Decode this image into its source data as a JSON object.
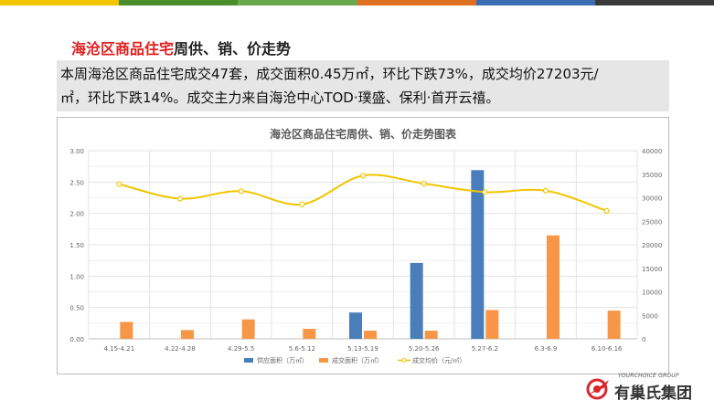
{
  "top_bar_colors": [
    "#f2c500",
    "#4a8f2a",
    "#6aa84f",
    "#e0701f",
    "#3c6fb6",
    "#3a3a3a"
  ],
  "heading": {
    "red_part": "海沧区商品住宅",
    "rest": "周供、销、价走势"
  },
  "summary": {
    "line1": "本周海沧区商品住宅成交47套，成交面积0.45万㎡，环比下跌73%，成交均价27203元/",
    "line2": "㎡，环比下跌14%。成交主力来自海沧中心TOD·璞盛、保利·首开云禧。"
  },
  "logo": {
    "english": "YOURCHOICE GROUP",
    "chinese": "有巢氏集团",
    "brand_color": "#d9262d"
  },
  "chart_data": {
    "type": "bar",
    "title": "海沧区商品住宅周供、销、价走势图表",
    "categories": [
      "4.15-4.21",
      "4.22-4.28",
      "4.29-5.5",
      "5.6-5.12",
      "5.13-5.19",
      "5.20-5.26",
      "5.27-6.2",
      "6.3-6.9",
      "6.10-6.16"
    ],
    "series": [
      {
        "name": "供应面积（万㎡）",
        "type": "bar",
        "axis": "left",
        "color": "#4a7ebb",
        "values": [
          0,
          0,
          0,
          0,
          0.42,
          1.21,
          2.69,
          0,
          0
        ]
      },
      {
        "name": "成交面积（万㎡）",
        "type": "bar",
        "axis": "left",
        "color": "#f79646",
        "values": [
          0.27,
          0.14,
          0.31,
          0.16,
          0.13,
          0.13,
          0.46,
          1.65,
          0.45
        ]
      },
      {
        "name": "成交均价（元/㎡）",
        "type": "line",
        "axis": "right",
        "color": "#f2c500",
        "values": [
          32900,
          29800,
          31400,
          28600,
          34700,
          33000,
          31200,
          31500,
          27203
        ]
      }
    ],
    "y_left": {
      "min": 0,
      "max": 3.0,
      "step": 0.5,
      "tick_labels": [
        "0.00",
        "0.50",
        "1.00",
        "1.50",
        "2.00",
        "2.50",
        "3.00"
      ]
    },
    "y_right": {
      "min": 0,
      "max": 40000,
      "step": 5000,
      "tick_labels": [
        "0",
        "5000",
        "10000",
        "15000",
        "20000",
        "25000",
        "30000",
        "35000",
        "40000"
      ]
    },
    "grid": true,
    "legend_position": "bottom"
  }
}
